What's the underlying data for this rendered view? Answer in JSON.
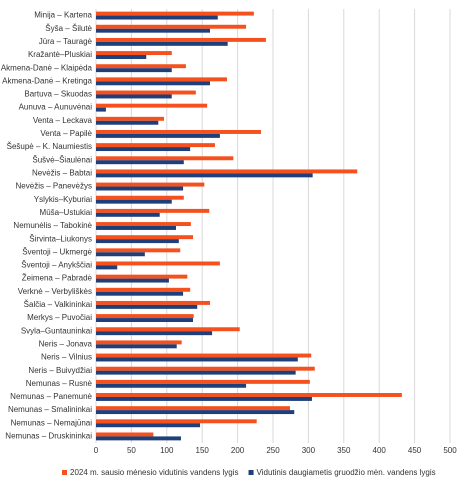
{
  "chart_data": {
    "type": "hbar",
    "categories": [
      "Minija – Kartena",
      "Šyša – Šilutė",
      "Jūra – Tauragė",
      "Kražantė–Pluskiai",
      "Akmena-Danė – Klaipėda",
      "Akmena-Danė – Kretinga",
      "Bartuva – Skuodas",
      "Aunuva – Aunuvėnai",
      "Venta – Leckava",
      "Venta – Papilė",
      "Šešupė – K. Naumiestis",
      "Šušvė–Šiaulėnai",
      "Nevėžis – Babtai",
      "Nevėžis – Panevėžys",
      "Yslykis–Kyburiai",
      "Mūša–Ustukiai",
      "Nemunėlis – Tabokinė",
      "Širvinta–Liukonys",
      "Šventoji – Ukmergė",
      "Šventoji – Anykščiai",
      "Žeimena – Pabradė",
      "Verknė – Verbyliškės",
      "Šalčia – Valkininkai",
      "Merkys – Puvočiai",
      "Svyla–Guntauninkai",
      "Neris – Jonava",
      "Neris – Vilnius",
      "Neris – Buivydžiai",
      "Nemunas – Rusnė",
      "Nemunas – Panemunė",
      "Nemunas – Smalininkai",
      "Nemunas – Nemajūnai",
      "Nemunas – Druskininkai"
    ],
    "series": [
      {
        "name": "2024 m. sausio mėnesio vidutinis vandens lygis",
        "color": "#f4511e",
        "values": [
          223,
          212,
          240,
          107,
          127,
          185,
          141,
          157,
          96,
          233,
          168,
          194,
          369,
          153,
          124,
          160,
          134,
          137,
          119,
          175,
          129,
          133,
          161,
          138,
          203,
          121,
          304,
          309,
          302,
          432,
          274,
          227,
          81
        ]
      },
      {
        "name": "Vidutinis daugiametis gruodžio mėn. vandens lygis",
        "color": "#1f3f7a",
        "values": [
          172,
          161,
          186,
          71,
          107,
          161,
          107,
          14,
          88,
          175,
          133,
          124,
          306,
          123,
          107,
          90,
          113,
          117,
          69,
          30,
          103,
          123,
          143,
          137,
          164,
          114,
          285,
          282,
          212,
          305,
          280,
          147,
          120
        ]
      }
    ],
    "xlim": [
      0,
      500
    ],
    "xticks": [
      0,
      50,
      100,
      150,
      200,
      250,
      300,
      350,
      400,
      450,
      500
    ],
    "grid": true
  }
}
